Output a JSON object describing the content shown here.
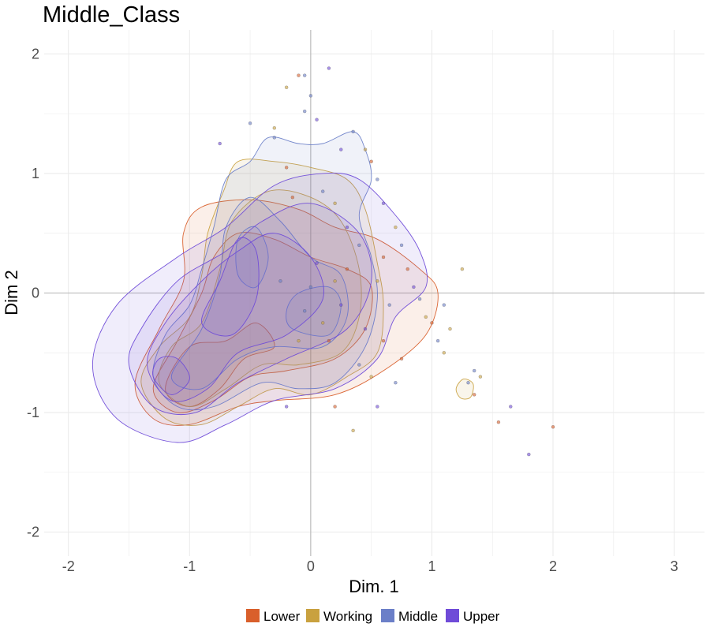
{
  "chart_data": {
    "type": "scatter",
    "title": "Middle_Class",
    "xlabel": "Dim. 1",
    "ylabel": "Dim 2",
    "xlim": [
      -2.2,
      3.25
    ],
    "ylim": [
      -2.2,
      2.2
    ],
    "x_ticks": [
      "-2",
      "-1",
      "0",
      "1",
      "2",
      "3"
    ],
    "y_ticks": [
      "-2",
      "-1",
      "0",
      "1",
      "2"
    ],
    "x_tick_values": [
      -2,
      -1,
      0,
      1,
      2,
      3
    ],
    "y_tick_values": [
      -2,
      -1,
      0,
      1,
      2
    ],
    "grid": true,
    "legend_position": "bottom",
    "series": [
      {
        "name": "Lower",
        "color": "#d95f2b",
        "contours": [
          [
            [
              -1.45,
              -0.75
            ],
            [
              -1.3,
              -1.05
            ],
            [
              -1.0,
              -1.1
            ],
            [
              -0.6,
              -0.95
            ],
            [
              -0.3,
              -0.9
            ],
            [
              0.2,
              -0.85
            ],
            [
              0.6,
              -0.65
            ],
            [
              0.95,
              -0.35
            ],
            [
              1.05,
              0.0
            ],
            [
              0.9,
              0.2
            ],
            [
              0.55,
              0.45
            ],
            [
              0.2,
              0.55
            ],
            [
              -0.1,
              0.7
            ],
            [
              -0.5,
              0.78
            ],
            [
              -0.9,
              0.72
            ],
            [
              -1.05,
              0.5
            ],
            [
              -1.05,
              0.1
            ],
            [
              -1.25,
              -0.3
            ]
          ],
          [
            [
              -1.3,
              -0.8
            ],
            [
              -1.1,
              -1.0
            ],
            [
              -0.8,
              -0.9
            ],
            [
              -0.5,
              -0.7
            ],
            [
              -0.2,
              -0.65
            ],
            [
              0.2,
              -0.55
            ],
            [
              0.45,
              -0.3
            ],
            [
              0.5,
              0.05
            ],
            [
              0.3,
              0.2
            ],
            [
              0.0,
              0.3
            ],
            [
              -0.3,
              0.45
            ],
            [
              -0.6,
              0.5
            ],
            [
              -0.8,
              0.3
            ],
            [
              -0.9,
              0.0
            ],
            [
              -1.1,
              -0.4
            ]
          ],
          [
            [
              -1.2,
              -0.8
            ],
            [
              -1.0,
              -0.95
            ],
            [
              -0.75,
              -0.8
            ],
            [
              -0.55,
              -0.55
            ],
            [
              -0.3,
              -0.45
            ],
            [
              -0.45,
              -0.25
            ],
            [
              -0.7,
              -0.4
            ],
            [
              -1.0,
              -0.45
            ]
          ]
        ]
      },
      {
        "name": "Working",
        "color": "#c9a13f",
        "contours": [
          [
            [
              -1.4,
              -0.75
            ],
            [
              -1.2,
              -1.05
            ],
            [
              -0.9,
              -1.1
            ],
            [
              -0.6,
              -0.95
            ],
            [
              -0.3,
              -0.8
            ],
            [
              0.0,
              -0.85
            ],
            [
              0.3,
              -0.7
            ],
            [
              0.55,
              -0.5
            ],
            [
              0.6,
              -0.1
            ],
            [
              0.55,
              0.25
            ],
            [
              0.45,
              0.7
            ],
            [
              0.3,
              0.95
            ],
            [
              0.0,
              1.05
            ],
            [
              -0.3,
              1.1
            ],
            [
              -0.6,
              1.1
            ],
            [
              -0.72,
              0.85
            ],
            [
              -0.85,
              0.5
            ],
            [
              -0.9,
              0.15
            ],
            [
              -1.0,
              -0.2
            ],
            [
              -1.25,
              -0.45
            ]
          ],
          [
            [
              -1.25,
              -0.75
            ],
            [
              -1.0,
              -0.95
            ],
            [
              -0.7,
              -0.8
            ],
            [
              -0.4,
              -0.6
            ],
            [
              -0.1,
              -0.6
            ],
            [
              0.25,
              -0.5
            ],
            [
              0.4,
              -0.2
            ],
            [
              0.4,
              0.2
            ],
            [
              0.25,
              0.6
            ],
            [
              0.0,
              0.8
            ],
            [
              -0.35,
              0.85
            ],
            [
              -0.65,
              0.6
            ],
            [
              -0.75,
              0.2
            ],
            [
              -0.9,
              -0.25
            ],
            [
              -1.15,
              -0.45
            ]
          ],
          [
            [
              1.2,
              -0.8
            ],
            [
              1.26,
              -0.72
            ],
            [
              1.34,
              -0.76
            ],
            [
              1.32,
              -0.87
            ],
            [
              1.24,
              -0.88
            ]
          ]
        ]
      },
      {
        "name": "Middle",
        "color": "#6b7fc8",
        "contours": [
          [
            [
              -1.3,
              -0.7
            ],
            [
              -1.1,
              -0.95
            ],
            [
              -0.8,
              -0.95
            ],
            [
              -0.4,
              -0.75
            ],
            [
              -0.1,
              -0.8
            ],
            [
              0.2,
              -0.75
            ],
            [
              0.45,
              -0.45
            ],
            [
              0.55,
              -0.05
            ],
            [
              0.5,
              0.3
            ],
            [
              0.4,
              0.65
            ],
            [
              0.5,
              0.95
            ],
            [
              0.45,
              1.2
            ],
            [
              0.35,
              1.35
            ],
            [
              0.1,
              1.25
            ],
            [
              -0.1,
              1.25
            ],
            [
              -0.35,
              1.3
            ],
            [
              -0.5,
              1.1
            ],
            [
              -0.7,
              0.95
            ],
            [
              -0.8,
              0.55
            ],
            [
              -0.9,
              0.2
            ],
            [
              -1.0,
              -0.1
            ],
            [
              -1.2,
              -0.35
            ]
          ],
          [
            [
              -1.15,
              -0.7
            ],
            [
              -0.9,
              -0.8
            ],
            [
              -0.6,
              -0.55
            ],
            [
              -0.3,
              -0.45
            ],
            [
              0.1,
              -0.45
            ],
            [
              0.3,
              -0.2
            ],
            [
              0.25,
              0.15
            ],
            [
              0.0,
              0.3
            ],
            [
              -0.25,
              0.6
            ],
            [
              -0.5,
              0.8
            ],
            [
              -0.7,
              0.55
            ],
            [
              -0.75,
              0.15
            ],
            [
              -0.9,
              -0.3
            ]
          ],
          [
            [
              -0.15,
              -0.3
            ],
            [
              0.15,
              -0.35
            ],
            [
              0.25,
              -0.1
            ],
            [
              0.15,
              0.05
            ],
            [
              -0.1,
              0.0
            ],
            [
              -0.2,
              -0.15
            ]
          ],
          [
            [
              -0.6,
              0.15
            ],
            [
              -0.45,
              0.05
            ],
            [
              -0.35,
              0.3
            ],
            [
              -0.45,
              0.55
            ],
            [
              -0.6,
              0.45
            ]
          ]
        ]
      },
      {
        "name": "Upper",
        "color": "#6f4bd8",
        "contours": [
          [
            [
              -1.8,
              -0.6
            ],
            [
              -1.6,
              -1.05
            ],
            [
              -1.1,
              -1.25
            ],
            [
              -0.7,
              -1.1
            ],
            [
              -0.3,
              -0.9
            ],
            [
              0.2,
              -0.8
            ],
            [
              0.55,
              -0.55
            ],
            [
              0.7,
              -0.2
            ],
            [
              0.95,
              0.05
            ],
            [
              0.9,
              0.35
            ],
            [
              0.7,
              0.65
            ],
            [
              0.4,
              0.95
            ],
            [
              0.1,
              1.0
            ],
            [
              -0.3,
              0.9
            ],
            [
              -0.7,
              0.55
            ],
            [
              -1.1,
              0.3
            ],
            [
              -1.6,
              -0.1
            ]
          ],
          [
            [
              -1.5,
              -0.6
            ],
            [
              -1.3,
              -0.95
            ],
            [
              -0.95,
              -1.0
            ],
            [
              -0.6,
              -0.75
            ],
            [
              -0.2,
              -0.55
            ],
            [
              0.3,
              -0.3
            ],
            [
              0.5,
              0.1
            ],
            [
              0.4,
              0.5
            ],
            [
              0.0,
              0.75
            ],
            [
              -0.4,
              0.6
            ],
            [
              -0.7,
              0.35
            ],
            [
              -1.1,
              0.1
            ],
            [
              -1.4,
              -0.3
            ]
          ],
          [
            [
              -1.35,
              -0.6
            ],
            [
              -1.15,
              -0.9
            ],
            [
              -0.85,
              -0.8
            ],
            [
              -0.6,
              -0.5
            ],
            [
              -0.2,
              -0.35
            ],
            [
              0.1,
              -0.05
            ],
            [
              0.0,
              0.3
            ],
            [
              -0.3,
              0.5
            ],
            [
              -0.6,
              0.35
            ],
            [
              -0.9,
              0.1
            ],
            [
              -1.2,
              -0.25
            ]
          ],
          [
            [
              -1.3,
              -0.7
            ],
            [
              -1.15,
              -0.85
            ],
            [
              -1.0,
              -0.72
            ],
            [
              -1.1,
              -0.55
            ],
            [
              -1.25,
              -0.55
            ]
          ],
          [
            [
              -0.9,
              -0.25
            ],
            [
              -0.65,
              -0.35
            ],
            [
              -0.45,
              -0.05
            ],
            [
              -0.45,
              0.35
            ],
            [
              -0.6,
              0.45
            ],
            [
              -0.75,
              0.1
            ]
          ]
        ]
      }
    ],
    "points": [
      [
        -0.2,
        1.72,
        1
      ],
      [
        -0.1,
        1.82,
        0
      ],
      [
        -0.05,
        1.82,
        2
      ],
      [
        0.15,
        1.88,
        3
      ],
      [
        0.0,
        1.65,
        2
      ],
      [
        0.05,
        1.45,
        3
      ],
      [
        -0.2,
        1.05,
        0
      ],
      [
        -0.3,
        1.3,
        2
      ],
      [
        0.25,
        1.2,
        3
      ],
      [
        0.35,
        1.35,
        2
      ],
      [
        0.45,
        1.2,
        1
      ],
      [
        -0.75,
        1.25,
        3
      ],
      [
        -0.5,
        1.42,
        2
      ],
      [
        -0.3,
        1.38,
        1
      ],
      [
        -0.05,
        1.52,
        2
      ],
      [
        0.5,
        1.1,
        0
      ],
      [
        0.55,
        0.95,
        2
      ],
      [
        0.6,
        0.75,
        3
      ],
      [
        0.7,
        0.55,
        1
      ],
      [
        0.75,
        0.4,
        2
      ],
      [
        0.8,
        0.2,
        0
      ],
      [
        0.85,
        0.05,
        3
      ],
      [
        0.9,
        -0.05,
        2
      ],
      [
        0.95,
        -0.2,
        1
      ],
      [
        1.0,
        -0.25,
        0
      ],
      [
        1.05,
        -0.4,
        2
      ],
      [
        1.1,
        -0.5,
        1
      ],
      [
        0.75,
        -0.55,
        0
      ],
      [
        0.7,
        -0.75,
        2
      ],
      [
        0.55,
        -0.95,
        3
      ],
      [
        0.35,
        -1.15,
        1
      ],
      [
        0.2,
        -0.95,
        0
      ],
      [
        -0.2,
        -0.95,
        3
      ],
      [
        0.4,
        -0.6,
        2
      ],
      [
        0.5,
        -0.7,
        1
      ],
      [
        0.6,
        -0.4,
        0
      ],
      [
        0.45,
        -0.3,
        3
      ],
      [
        0.65,
        -0.1,
        2
      ],
      [
        0.55,
        0.1,
        1
      ],
      [
        0.6,
        0.3,
        0
      ],
      [
        0.4,
        0.4,
        2
      ],
      [
        0.3,
        0.55,
        3
      ],
      [
        0.2,
        0.75,
        1
      ],
      [
        0.1,
        0.85,
        2
      ],
      [
        -0.15,
        0.8,
        0
      ],
      [
        0.1,
        -0.25,
        1
      ],
      [
        -0.05,
        -0.15,
        2
      ],
      [
        0.15,
        -0.4,
        0
      ],
      [
        0.25,
        -0.1,
        3
      ],
      [
        0.0,
        0.05,
        2
      ],
      [
        -0.1,
        -0.4,
        1
      ],
      [
        0.3,
        0.2,
        0
      ],
      [
        -0.25,
        0.1,
        2
      ],
      [
        0.2,
        0.1,
        1
      ],
      [
        0.05,
        0.25,
        3
      ],
      [
        1.3,
        -0.75,
        2
      ],
      [
        1.35,
        -0.85,
        0
      ],
      [
        1.4,
        -0.7,
        1
      ],
      [
        1.35,
        -0.65,
        2
      ],
      [
        1.55,
        -1.08,
        0
      ],
      [
        1.65,
        -0.95,
        3
      ],
      [
        1.8,
        -1.35,
        3
      ],
      [
        2.0,
        -1.12,
        0
      ],
      [
        1.25,
        0.2,
        1
      ],
      [
        1.1,
        -0.1,
        2
      ],
      [
        1.15,
        -0.3,
        1
      ]
    ]
  }
}
